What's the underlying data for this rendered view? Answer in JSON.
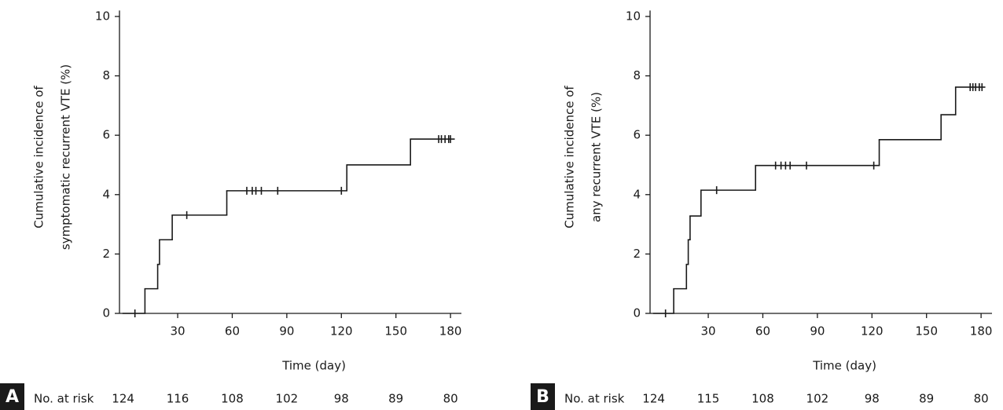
{
  "chart_data": [
    {
      "type": "step",
      "panel": "A",
      "ylabel": [
        "Cumulative incidence of",
        "symptomatic recurrent VTE (%)"
      ],
      "xlabel": "Time (day)",
      "x": [
        0,
        12,
        19,
        20,
        27,
        57,
        123,
        158,
        182
      ],
      "values": [
        0,
        0.83,
        1.65,
        2.48,
        3.31,
        4.13,
        5.0,
        5.87,
        5.87
      ],
      "censored": {
        "x": [
          6.5,
          35,
          68,
          71,
          73,
          76,
          85,
          120,
          173.5,
          175,
          177,
          179,
          180
        ],
        "values": [
          0,
          3.31,
          4.13,
          4.13,
          4.13,
          4.13,
          4.13,
          4.13,
          5.87,
          5.87,
          5.87,
          5.87,
          5.87
        ]
      },
      "color": "#1a1a1a",
      "xlim": [
        -2,
        186
      ],
      "ylim": [
        0,
        10.2
      ],
      "xticks": [
        30,
        60,
        90,
        120,
        150,
        180
      ],
      "yticks": [
        0,
        2,
        4,
        6,
        8,
        10
      ],
      "risk_label": "No. at risk",
      "at_risk": [
        124,
        116,
        108,
        102,
        98,
        89,
        80
      ]
    },
    {
      "type": "step",
      "panel": "B",
      "ylabel": [
        "Cumulative incidence of",
        "any recurrent VTE (%)"
      ],
      "xlabel": "Time (day)",
      "x": [
        0,
        11,
        18,
        19,
        20,
        26,
        56,
        124,
        158,
        166,
        182
      ],
      "values": [
        0,
        0.83,
        1.65,
        2.48,
        3.28,
        4.15,
        4.98,
        5.85,
        6.69,
        7.62,
        7.62
      ],
      "censored": {
        "x": [
          6.5,
          34.6,
          67,
          70,
          72.5,
          75,
          84,
          121,
          174,
          175.5,
          177,
          179,
          180.5
        ],
        "values": [
          0,
          4.15,
          4.98,
          4.98,
          4.98,
          4.98,
          4.98,
          4.98,
          7.62,
          7.62,
          7.62,
          7.62,
          7.62
        ]
      },
      "color": "#1a1a1a",
      "xlim": [
        -2,
        186
      ],
      "ylim": [
        0,
        10.2
      ],
      "xticks": [
        30,
        60,
        90,
        120,
        150,
        180
      ],
      "yticks": [
        0,
        2,
        4,
        6,
        8,
        10
      ],
      "risk_label": "No. at risk",
      "at_risk": [
        124,
        115,
        108,
        102,
        98,
        89,
        80
      ]
    }
  ]
}
